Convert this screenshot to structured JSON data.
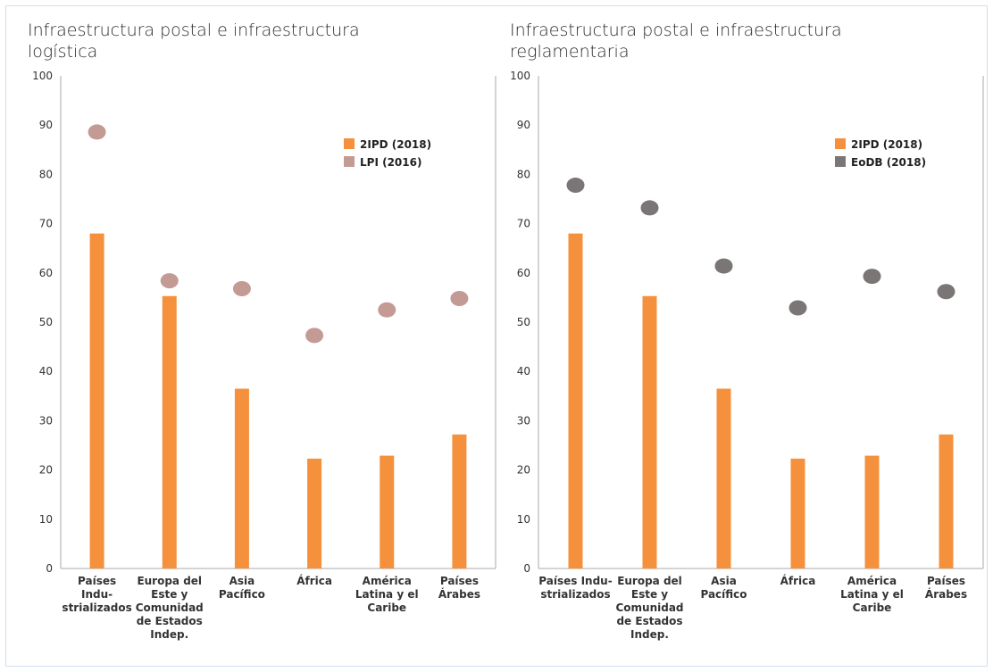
{
  "colors": {
    "bar": "#F5913C",
    "lpi": "#C49A94",
    "eodb": "#7A7675",
    "axis": "#aaaaaa"
  },
  "chart_data": [
    {
      "type": "bar",
      "title": "Infraestructura postal e infraestructura logística",
      "ylim": [
        0,
        100
      ],
      "yticks": [
        0,
        10,
        20,
        30,
        40,
        50,
        60,
        70,
        80,
        90,
        100
      ],
      "categories": [
        [
          "Países",
          "Indu-",
          "strializados"
        ],
        [
          "Europa del",
          "Este y",
          "Comunidad",
          "de Estados",
          "Indep."
        ],
        [
          "Asia",
          "Pacífico"
        ],
        [
          "África"
        ],
        [
          "América",
          "Latina y el",
          "Caribe"
        ],
        [
          "Países",
          "Árabes"
        ]
      ],
      "series": [
        {
          "name": "2IPD (2018)",
          "kind": "bar",
          "color": "#F5913C",
          "values": [
            68,
            55.3,
            36.5,
            22.3,
            22.9,
            27.2
          ]
        },
        {
          "name": "LPI (2016)",
          "kind": "dot",
          "color": "#C49A94",
          "values": [
            88.6,
            58.4,
            56.8,
            47.3,
            52.5,
            54.8
          ]
        }
      ],
      "legend": "top-right",
      "grid": false
    },
    {
      "type": "bar",
      "title": "Infraestructura postal e infraestructura reglamentaria",
      "ylim": [
        0,
        100
      ],
      "yticks": [
        0,
        10,
        20,
        30,
        40,
        50,
        60,
        70,
        80,
        90,
        100
      ],
      "categories": [
        [
          "Países Indu-",
          "strializados"
        ],
        [
          "Europa del",
          "Este y",
          "Comunidad",
          "de Estados",
          "Indep."
        ],
        [
          "Asia",
          "Pacífico"
        ],
        [
          "África"
        ],
        [
          "América",
          "Latina y el",
          "Caribe"
        ],
        [
          "Países",
          "Árabes"
        ]
      ],
      "series": [
        {
          "name": "2IPD (2018)",
          "kind": "bar",
          "color": "#F5913C",
          "values": [
            68,
            55.3,
            36.5,
            22.3,
            22.9,
            27.2
          ]
        },
        {
          "name": "EoDB (2018)",
          "kind": "dot",
          "color": "#7A7675",
          "values": [
            77.8,
            73.2,
            61.4,
            52.9,
            59.3,
            56.2
          ]
        }
      ],
      "legend": "top-right",
      "grid": false
    }
  ]
}
